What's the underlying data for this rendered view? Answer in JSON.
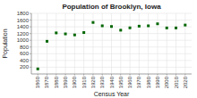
{
  "chart_data": {
    "type": "scatter",
    "title": "Population of Brooklyn, Iowa",
    "x_label": "Census Year",
    "y_label": "Population",
    "x": [
      1860,
      1870,
      1880,
      1890,
      1900,
      1910,
      1920,
      1930,
      1940,
      1950,
      1960,
      1970,
      1980,
      1990,
      2000,
      2010,
      2020
    ],
    "values": [
      150,
      970,
      1220,
      1190,
      1160,
      1230,
      1530,
      1430,
      1410,
      1300,
      1370,
      1420,
      1430,
      1490,
      1367,
      1367,
      1453
    ],
    "color": "#006600",
    "marker": "square",
    "xlim": [
      1853,
      2027
    ],
    "xticks": [
      1860,
      1870,
      1880,
      1890,
      1900,
      1910,
      1920,
      1930,
      1940,
      1950,
      1960,
      1970,
      1980,
      1990,
      2000,
      2010,
      2020
    ],
    "ylim": [
      0,
      1800
    ],
    "yticks": [
      200,
      400,
      600,
      800,
      1000,
      1200,
      1400,
      1600,
      1800
    ],
    "grid": true
  }
}
